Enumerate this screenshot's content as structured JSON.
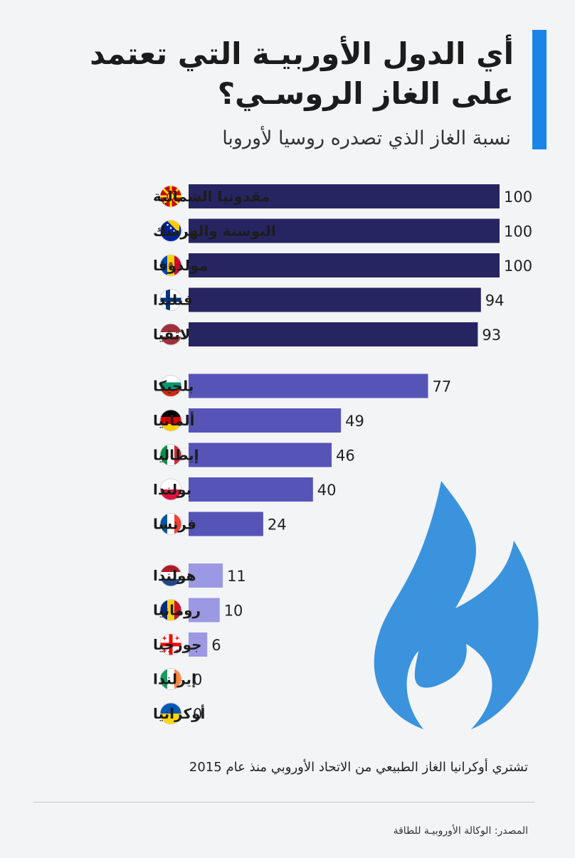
{
  "header": {
    "title": "أي الدول الأوربيـة التي تعتمد على الغاز الروسـي؟",
    "subtitle": "نسبة الغاز الذي تصدره روسيا لأوروبا"
  },
  "colors": {
    "accent": "#1a85e6",
    "group_high": "#272561",
    "group_mid": "#5754b8",
    "group_low": "#9b99e3",
    "flame": "#3a93dc"
  },
  "chart_data": {
    "type": "bar",
    "orientation": "horizontal",
    "categories": [
      "مقدونيا الشمالية",
      "البوسنة والهرسك",
      "مولدوفا",
      "فنلندا",
      "لاتفيا",
      "بلجيكا",
      "ألمانيا",
      "إيطاليا",
      "بولندا",
      "فرنسا",
      "هولندا",
      "رومانيا",
      "جورجيا",
      "إيرلندا",
      "أوكرانيا"
    ],
    "values": [
      100,
      100,
      100,
      94,
      93,
      77,
      49,
      46,
      40,
      24,
      11,
      10,
      6,
      0,
      0
    ],
    "groups": [
      0,
      0,
      0,
      0,
      0,
      1,
      1,
      1,
      1,
      1,
      2,
      2,
      2,
      2,
      2
    ],
    "flags": [
      "north-macedonia-flag-icon",
      "bosnia-flag-icon",
      "moldova-flag-icon",
      "finland-flag-icon",
      "latvia-flag-icon",
      "bulgaria-flag-icon",
      "germany-flag-icon",
      "italy-flag-icon",
      "poland-flag-icon",
      "france-flag-icon",
      "netherlands-flag-icon",
      "romania-flag-icon",
      "georgia-flag-icon",
      "ireland-flag-icon",
      "ukraine-flag-icon"
    ],
    "xlim": [
      0,
      100
    ],
    "grid": false,
    "legend": "none"
  },
  "footer": {
    "note": "تشتري أوكرانيا الغاز الطبيعي من الاتحاد الأوروبي منذ عام 2015",
    "source": "المصدر: الوكالة الأوروبيـة للطاقة"
  }
}
